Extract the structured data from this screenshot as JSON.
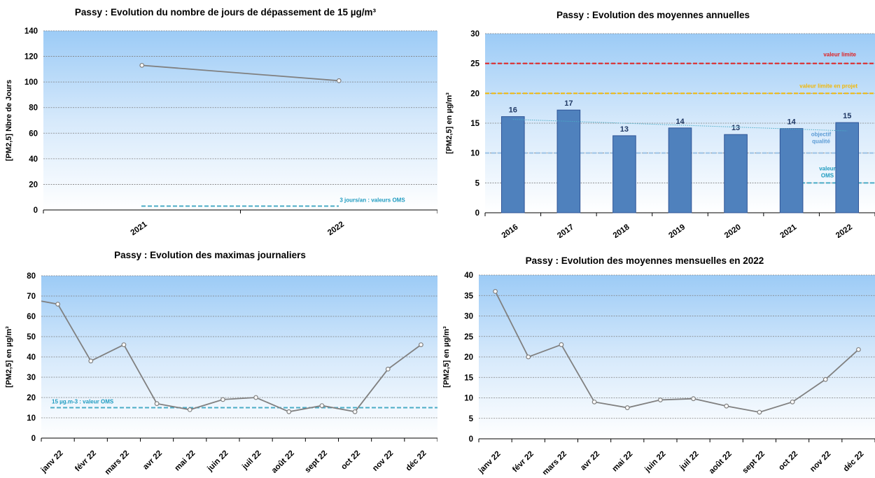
{
  "chart_data": [
    {
      "id": "p1",
      "type": "line",
      "title": "Passy : Evolution du nombre de jours de dépassement de 15 µg/m³",
      "ylabel": "[PM2,5] Nbre de Jours",
      "categories": [
        "2021",
        "2022"
      ],
      "values": [
        113,
        101
      ],
      "ylim": [
        0,
        140
      ],
      "ystep": 20,
      "grid": true,
      "reference_lines": [
        {
          "label": "3 jours/an :  valeurs OMS",
          "value": 3,
          "color": "#4bacc6"
        }
      ]
    },
    {
      "id": "p2",
      "type": "bar",
      "title": "Passy : Evolution des moyennes annuelles",
      "ylabel": "[PM2,5] en µg/m³",
      "categories": [
        "2016",
        "2017",
        "2018",
        "2019",
        "2020",
        "2021",
        "2022"
      ],
      "values": [
        16,
        17,
        13,
        14,
        13,
        14,
        15
      ],
      "bar_values_precise": [
        16.1,
        17.2,
        12.9,
        14.2,
        13.1,
        14.1,
        15.1
      ],
      "ylim": [
        0,
        30
      ],
      "ystep": 5,
      "grid": true,
      "trendline": true,
      "reference_lines": [
        {
          "label": "valeur limite",
          "value": 25,
          "color": "#e02020"
        },
        {
          "label": "valeur limite en projet",
          "value": 20,
          "color": "#f2b705"
        },
        {
          "label": "objectif qualité",
          "value": 10,
          "color": "#9dc3e6"
        },
        {
          "label": "valeur OMS",
          "value": 5,
          "color": "#4bacc6"
        }
      ]
    },
    {
      "id": "p3",
      "type": "line",
      "title": "Passy : Evolution des  maximas journaliers",
      "ylabel": "[PM2,5] en µg/m³",
      "categories": [
        "janv 22",
        "févr 22",
        "mars 22",
        "avr 22",
        "mai 22",
        "juin 22",
        "juil 22",
        "août 22",
        "sept 22",
        "oct 22",
        "nov 22",
        "déc 22"
      ],
      "values": [
        66,
        38,
        46,
        17,
        14,
        19,
        20,
        13,
        16,
        13,
        34,
        46
      ],
      "ylim": [
        0,
        80
      ],
      "ystep": 10,
      "grid": true,
      "reference_lines": [
        {
          "label": "15 µg.m-3 : valeur OMS",
          "value": 15,
          "color": "#4bacc6"
        }
      ]
    },
    {
      "id": "p4",
      "type": "line",
      "title": "Passy : Evolution des moyennes mensuelles en 2022",
      "ylabel": "[PM2,5] en µg/m³",
      "categories": [
        "janv 22",
        "févr 22",
        "mars 22",
        "avr 22",
        "mai 22",
        "juin 22",
        "juil 22",
        "août 22",
        "sept 22",
        "oct 22",
        "nov 22",
        "déc 22"
      ],
      "values": [
        36,
        20,
        23,
        9,
        7.6,
        9.5,
        9.8,
        8,
        6.5,
        9,
        14.5,
        21.8
      ],
      "ylim": [
        0,
        40
      ],
      "ystep": 5,
      "grid": true,
      "reference_lines": []
    }
  ]
}
